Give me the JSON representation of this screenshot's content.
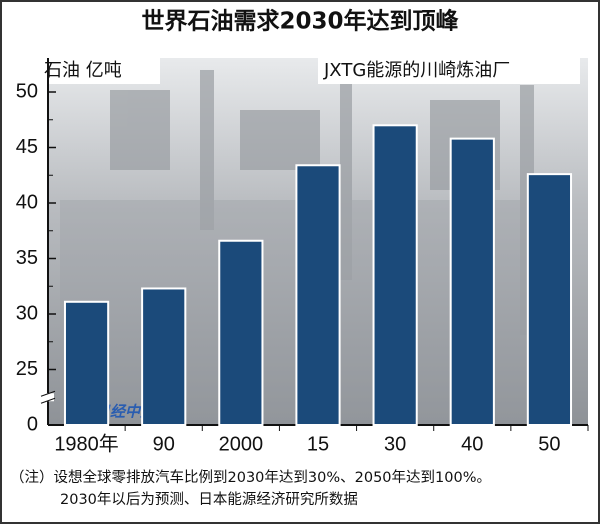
{
  "chart_data": {
    "type": "bar",
    "title": "世界石油需求2030年达到顶峰",
    "y_label": "石油 亿吨",
    "annotation": "JXTG能源的川崎炼油厂",
    "watermark": "日经中文网",
    "footnotes": [
      "（注）设想全球零排放汽车比例到2030年达到30%、2050年达到100%。",
      "2030年以后为预测、日本能源经济研究所数据"
    ],
    "categories": [
      "1980年",
      "90",
      "2000",
      "15",
      "30",
      "40",
      "50"
    ],
    "values": [
      31.1,
      32.3,
      36.6,
      43.4,
      47.0,
      45.8,
      42.6
    ],
    "color": "#1b4a7a",
    "ylim": [
      0,
      50
    ],
    "yticks": [
      0,
      25,
      30,
      35,
      40,
      45,
      50
    ],
    "axis_break": true
  }
}
